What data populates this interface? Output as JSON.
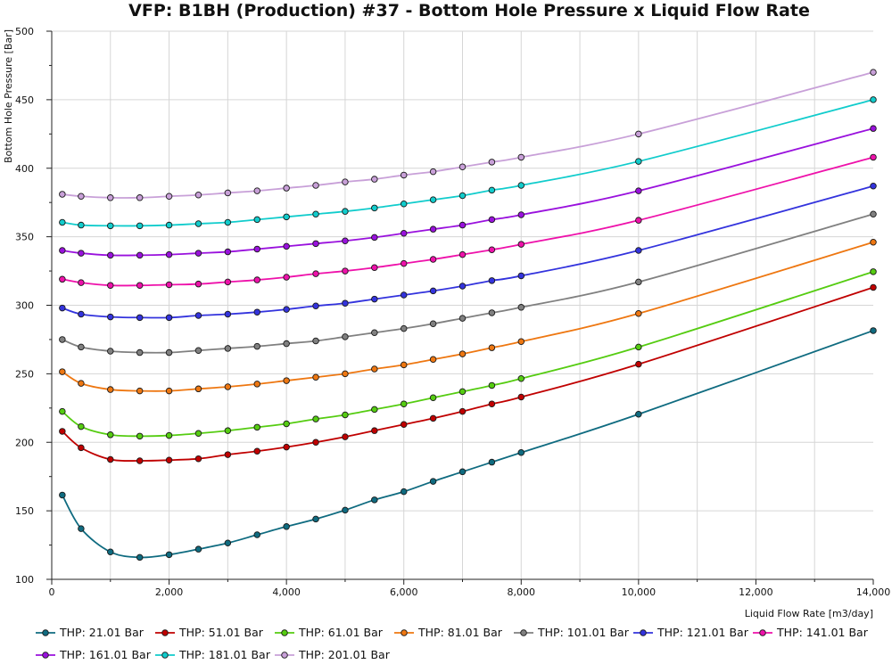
{
  "chart_data": {
    "type": "line",
    "title": "VFP: B1BH (Production) #37 - Bottom Hole Pressure x Liquid Flow Rate",
    "xlabel": "Liquid Flow Rate [m3/day]",
    "ylabel": "Bottom Hole Pressure [Bar]",
    "xlim": [
      0,
      14000
    ],
    "ylim": [
      100,
      500
    ],
    "xticks": [
      0,
      2000,
      4000,
      6000,
      8000,
      10000,
      12000,
      14000
    ],
    "xtick_labels": [
      "0",
      "2,000",
      "4,000",
      "6,000",
      "8,000",
      "10,000",
      "12,000",
      "14,000"
    ],
    "yticks": [
      100,
      150,
      200,
      250,
      300,
      350,
      400,
      450,
      500
    ],
    "ytick_labels": [
      "100",
      "150",
      "200",
      "250",
      "300",
      "350",
      "400",
      "450",
      "500"
    ],
    "grid": true,
    "legend_position": "bottom",
    "x": [
      180,
      500,
      1000,
      1500,
      2000,
      2500,
      3000,
      3500,
      4000,
      4500,
      5000,
      5500,
      6000,
      6500,
      7000,
      7500,
      8000,
      10000,
      14000
    ],
    "series": [
      {
        "name": "THP: 21.01 Bar",
        "color": "#0f6b80",
        "values": [
          161.5,
          137,
          120,
          116,
          118,
          122,
          126.5,
          132.5,
          138.5,
          144,
          150.5,
          158,
          164,
          171.5,
          178.5,
          185.5,
          192.5,
          220.5,
          281.5
        ]
      },
      {
        "name": "THP: 51.01 Bar",
        "color": "#c00000",
        "values": [
          208,
          196,
          187.5,
          186.5,
          187,
          188,
          191,
          193.5,
          196.5,
          200,
          204,
          208.5,
          213,
          217.5,
          222.5,
          228,
          233,
          257,
          313
        ]
      },
      {
        "name": "THP: 61.01 Bar",
        "color": "#55cc11",
        "values": [
          222.5,
          211.5,
          205.5,
          204.5,
          205,
          206.5,
          208.5,
          211,
          213.5,
          217,
          220,
          224,
          228,
          232.5,
          237,
          241.5,
          246.5,
          269.5,
          324.5
        ]
      },
      {
        "name": "THP: 81.01 Bar",
        "color": "#ee7711",
        "values": [
          251.5,
          243,
          238.5,
          237.5,
          237.5,
          239,
          240.5,
          242.5,
          245,
          247.5,
          250,
          253.5,
          256.5,
          260.5,
          264.5,
          269,
          273.5,
          294,
          346
        ]
      },
      {
        "name": "THP: 101.01 Bar",
        "color": "#808080",
        "values": [
          275,
          269.5,
          266.5,
          265.5,
          265.5,
          267,
          268.5,
          270,
          272,
          274,
          277,
          280,
          283,
          286.5,
          290.5,
          294.5,
          298.5,
          317,
          366.5
        ]
      },
      {
        "name": "THP: 121.01 Bar",
        "color": "#3333dd",
        "values": [
          298,
          293.5,
          291.5,
          291,
          291,
          292.5,
          293.5,
          295,
          297,
          299.5,
          301.5,
          304.5,
          307.5,
          310.5,
          314,
          318,
          321.5,
          340,
          387
        ]
      },
      {
        "name": "THP: 141.01 Bar",
        "color": "#ee11aa",
        "values": [
          319,
          316.5,
          314.5,
          314.5,
          315,
          315.5,
          317,
          318.5,
          320.5,
          323,
          325,
          327.5,
          330.5,
          333.5,
          337,
          340.5,
          344.5,
          362,
          408
        ]
      },
      {
        "name": "THP: 161.01 Bar",
        "color": "#9911dd",
        "values": [
          340,
          338,
          336.5,
          336.5,
          337,
          338,
          339,
          341,
          343,
          345,
          347,
          349.5,
          352.5,
          355.5,
          358.5,
          362.5,
          366,
          383.5,
          429
        ]
      },
      {
        "name": "THP: 181.01 Bar",
        "color": "#11cccc",
        "values": [
          360.5,
          358.5,
          358,
          358,
          358.5,
          359.5,
          360.5,
          362.5,
          364.5,
          366.5,
          368.5,
          371,
          374,
          377,
          380,
          384,
          387.5,
          405,
          450
        ]
      },
      {
        "name": "THP: 201.01 Bar",
        "color": "#c8a0d8",
        "values": [
          381,
          379.5,
          378.5,
          378.5,
          379.5,
          380.5,
          382,
          383.5,
          385.5,
          387.5,
          390,
          392,
          395,
          397.5,
          401,
          404.5,
          408,
          425,
          470
        ]
      }
    ]
  }
}
